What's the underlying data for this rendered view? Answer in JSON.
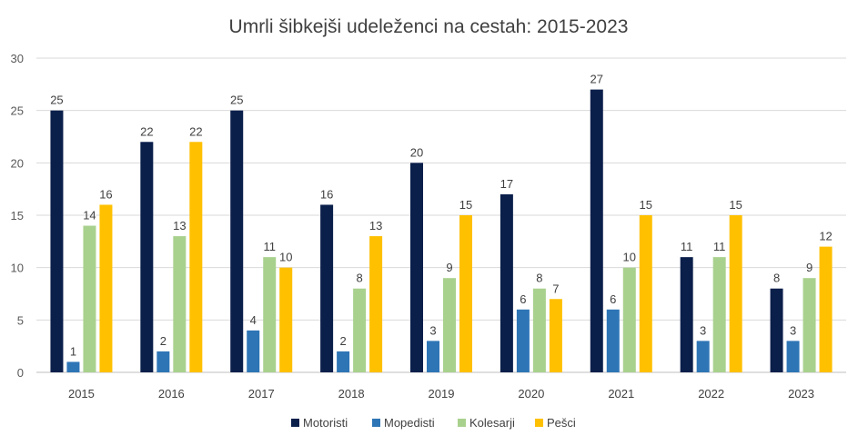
{
  "chart_data": {
    "type": "bar",
    "title": "Umrli šibkejši udeleženci na cestah: 2015-2023",
    "xlabel": "",
    "ylabel": "",
    "ylim": [
      0,
      30
    ],
    "yticks": [
      0,
      5,
      10,
      15,
      20,
      25,
      30
    ],
    "grid": true,
    "legend_position": "bottom",
    "categories": [
      "2015",
      "2016",
      "2017",
      "2018",
      "2019",
      "2020",
      "2021",
      "2022",
      "2023"
    ],
    "series": [
      {
        "name": "Motoristi",
        "color": "#0b1f4b",
        "values": [
          25,
          22,
          25,
          16,
          20,
          17,
          27,
          11,
          8
        ]
      },
      {
        "name": "Mopedisti",
        "color": "#2e75b6",
        "values": [
          1,
          2,
          4,
          2,
          3,
          6,
          6,
          3,
          3
        ]
      },
      {
        "name": "Kolesarji",
        "color": "#a9d18e",
        "values": [
          14,
          13,
          11,
          8,
          9,
          8,
          10,
          11,
          9
        ]
      },
      {
        "name": "Pešci",
        "color": "#ffc000",
        "values": [
          16,
          22,
          10,
          13,
          15,
          7,
          15,
          15,
          12
        ]
      }
    ]
  }
}
